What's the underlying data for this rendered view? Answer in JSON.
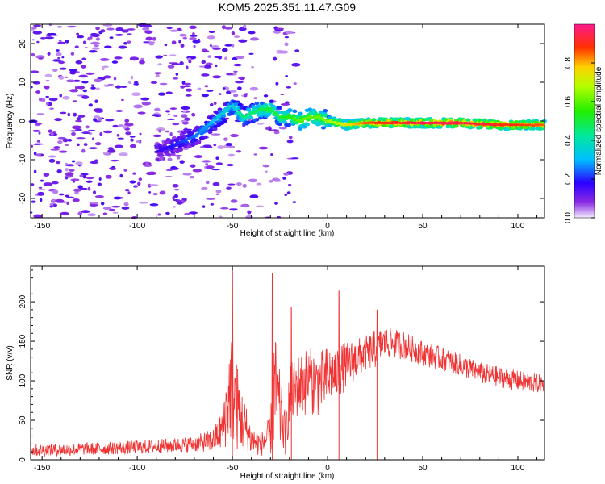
{
  "title": "KOM5.2025.351.11.47.G09",
  "chart_data": [
    {
      "type": "heatmap",
      "xlabel": "Height of straight line (km)",
      "ylabel": "Frequency (Hz)",
      "xlim": [
        -156,
        114
      ],
      "ylim": [
        -25,
        25
      ],
      "xticks": [
        -150,
        -100,
        -50,
        0,
        50,
        100
      ],
      "yticks": [
        -20,
        -10,
        0,
        10,
        20
      ],
      "colorbar": {
        "label": "Normalized spectral amplitude",
        "range": [
          0.0,
          1.0
        ],
        "ticks": [
          0.0,
          0.2,
          0.4,
          0.6,
          0.8
        ],
        "colormap": "rainbow (violet at 0.0 to magenta-red at 1.0)"
      },
      "ridge": {
        "description_values": "frequency of peak amplitude vs height",
        "x": [
          -90,
          -80,
          -70,
          -60,
          -55,
          -50,
          -45,
          -40,
          -35,
          -30,
          -25,
          -20,
          -15,
          -10,
          -5,
          0,
          10,
          20,
          30,
          50,
          70,
          90,
          114
        ],
        "frequency": [
          -8,
          -6,
          -4,
          0,
          2,
          4,
          1,
          2,
          3,
          3,
          1,
          1,
          0,
          1,
          1,
          0,
          -1,
          -0.5,
          -0.5,
          -0.5,
          -0.5,
          -1,
          -1
        ],
        "amplitude": [
          0.15,
          0.2,
          0.25,
          0.3,
          0.35,
          0.35,
          0.45,
          0.45,
          0.5,
          0.5,
          0.5,
          0.55,
          0.6,
          0.6,
          0.6,
          0.65,
          0.75,
          0.85,
          0.9,
          0.95,
          0.95,
          0.9,
          0.85
        ]
      }
    },
    {
      "type": "line",
      "xlabel": "Height of straight line (km)",
      "ylabel": "SNR (v/v)",
      "xlim": [
        -156,
        114
      ],
      "ylim": [
        0,
        245
      ],
      "xticks": [
        -150,
        -100,
        -50,
        0,
        50,
        100
      ],
      "yticks": [
        0,
        50,
        100,
        150,
        200
      ],
      "color": "#f03232",
      "envelope": {
        "x": [
          -156,
          -120,
          -90,
          -70,
          -60,
          -55,
          -52,
          -50,
          -48,
          -45,
          -40,
          -35,
          -30,
          -28,
          -25,
          -22,
          -20,
          -15,
          -10,
          -5,
          0,
          5,
          10,
          20,
          25,
          30,
          40,
          50,
          60,
          70,
          80,
          90,
          100,
          114
        ],
        "mean": [
          12,
          14,
          17,
          20,
          25,
          40,
          80,
          100,
          70,
          50,
          25,
          20,
          30,
          90,
          60,
          30,
          80,
          95,
          100,
          95,
          105,
          110,
          120,
          135,
          140,
          148,
          145,
          135,
          128,
          120,
          110,
          105,
          100,
          95
        ],
        "spread": [
          8,
          8,
          9,
          10,
          15,
          30,
          60,
          80,
          60,
          40,
          20,
          15,
          25,
          80,
          50,
          25,
          40,
          40,
          45,
          40,
          40,
          35,
          30,
          22,
          25,
          20,
          18,
          16,
          15,
          14,
          14,
          13,
          13,
          12
        ]
      },
      "peaks": [
        {
          "x": -50,
          "y": 242
        },
        {
          "x": -29,
          "y": 236
        },
        {
          "x": 6,
          "y": 214
        },
        {
          "x": -19,
          "y": 193
        },
        {
          "x": 26,
          "y": 190
        }
      ]
    }
  ]
}
